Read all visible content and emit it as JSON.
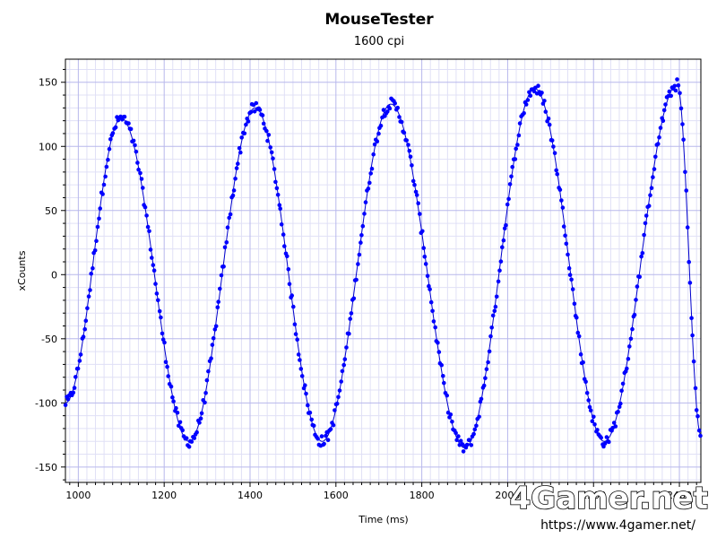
{
  "chart_data": {
    "type": "scatter",
    "title": "MouseTester",
    "subtitle": "1600 cpi",
    "xlabel": "Time (ms)",
    "ylabel": "xCounts",
    "xlim": [
      970,
      2450
    ],
    "ylim": [
      -162,
      168
    ],
    "xticks": [
      1000,
      1200,
      1400,
      1600,
      1800,
      2000,
      2200,
      2400
    ],
    "yticks": [
      -150,
      -100,
      -50,
      0,
      50,
      100,
      150
    ],
    "grid": true,
    "series": [
      {
        "kind": "points",
        "color": "#0000ff",
        "extrema": [
          [
            970,
            -100
          ],
          [
            1100,
            122
          ],
          [
            1258,
            -130
          ],
          [
            1412,
            130
          ],
          [
            1568,
            -130
          ],
          [
            1728,
            133
          ],
          [
            1900,
            -135
          ],
          [
            2063,
            145
          ],
          [
            2225,
            -130
          ],
          [
            2395,
            148
          ],
          [
            2450,
            -125
          ]
        ]
      },
      {
        "kind": "fit-line",
        "color": "#0000cc"
      }
    ]
  },
  "watermark": {
    "logo_text": "4Gamer.net",
    "url": "https://www.4gamer.net/"
  }
}
